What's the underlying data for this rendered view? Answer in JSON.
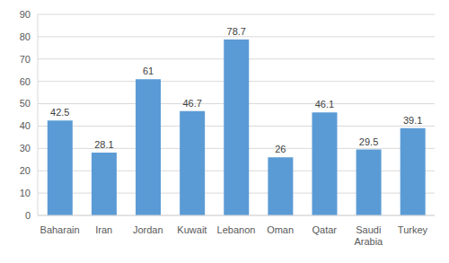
{
  "chart_data": {
    "type": "bar",
    "categories": [
      "Baharain",
      "Iran",
      "Jordan",
      "Kuwait",
      "Lebanon",
      "Oman",
      "Qatar",
      "Saudi Arabia",
      "Turkey"
    ],
    "values": [
      42.5,
      28.1,
      61,
      46.7,
      78.7,
      26,
      46.1,
      29.5,
      39.1
    ],
    "color": "#5b9bd5",
    "ylim": [
      0,
      90
    ],
    "yticks": [
      0,
      10,
      20,
      30,
      40,
      50,
      60,
      70,
      80,
      90
    ],
    "grid": true,
    "data_labels": true
  }
}
